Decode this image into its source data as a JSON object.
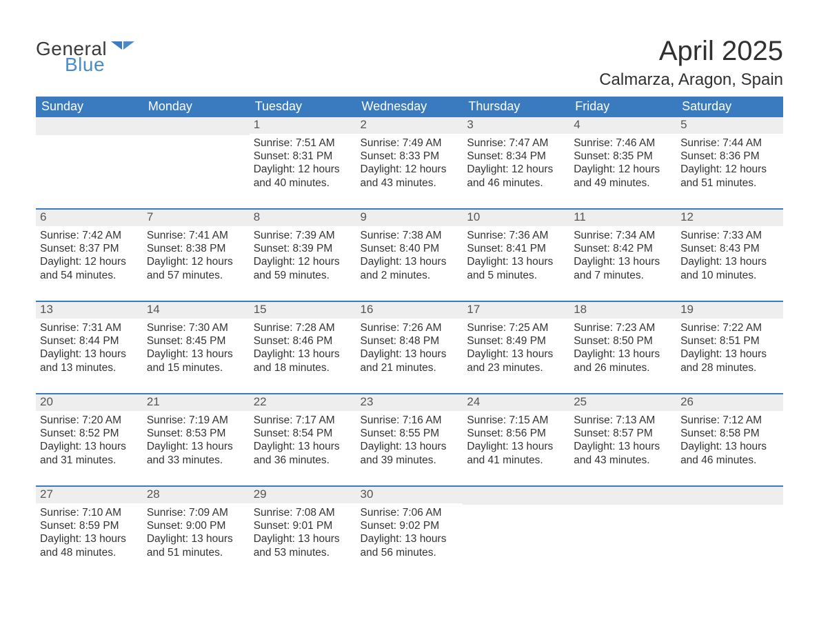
{
  "logo": {
    "word1": "General",
    "word2": "Blue",
    "word1_color": "#3a3a3a",
    "word2_color": "#4a8cc9",
    "icon_color": "#3a7bbf"
  },
  "title": {
    "month_year": "April 2025",
    "location": "Calmarza, Aragon, Spain"
  },
  "colors": {
    "header_bg": "#3a7bbf",
    "header_text": "#ffffff",
    "daynum_bg": "#eeeeee",
    "daynum_text": "#555555",
    "body_text": "#333333",
    "row_divider": "#3a7bbf",
    "page_bg": "#ffffff"
  },
  "weekdays": [
    "Sunday",
    "Monday",
    "Tuesday",
    "Wednesday",
    "Thursday",
    "Friday",
    "Saturday"
  ],
  "weeks": [
    [
      {
        "day": "",
        "sunrise": "",
        "sunset": "",
        "daylight": ""
      },
      {
        "day": "",
        "sunrise": "",
        "sunset": "",
        "daylight": ""
      },
      {
        "day": "1",
        "sunrise": "Sunrise: 7:51 AM",
        "sunset": "Sunset: 8:31 PM",
        "daylight": "Daylight: 12 hours and 40 minutes."
      },
      {
        "day": "2",
        "sunrise": "Sunrise: 7:49 AM",
        "sunset": "Sunset: 8:33 PM",
        "daylight": "Daylight: 12 hours and 43 minutes."
      },
      {
        "day": "3",
        "sunrise": "Sunrise: 7:47 AM",
        "sunset": "Sunset: 8:34 PM",
        "daylight": "Daylight: 12 hours and 46 minutes."
      },
      {
        "day": "4",
        "sunrise": "Sunrise: 7:46 AM",
        "sunset": "Sunset: 8:35 PM",
        "daylight": "Daylight: 12 hours and 49 minutes."
      },
      {
        "day": "5",
        "sunrise": "Sunrise: 7:44 AM",
        "sunset": "Sunset: 8:36 PM",
        "daylight": "Daylight: 12 hours and 51 minutes."
      }
    ],
    [
      {
        "day": "6",
        "sunrise": "Sunrise: 7:42 AM",
        "sunset": "Sunset: 8:37 PM",
        "daylight": "Daylight: 12 hours and 54 minutes."
      },
      {
        "day": "7",
        "sunrise": "Sunrise: 7:41 AM",
        "sunset": "Sunset: 8:38 PM",
        "daylight": "Daylight: 12 hours and 57 minutes."
      },
      {
        "day": "8",
        "sunrise": "Sunrise: 7:39 AM",
        "sunset": "Sunset: 8:39 PM",
        "daylight": "Daylight: 12 hours and 59 minutes."
      },
      {
        "day": "9",
        "sunrise": "Sunrise: 7:38 AM",
        "sunset": "Sunset: 8:40 PM",
        "daylight": "Daylight: 13 hours and 2 minutes."
      },
      {
        "day": "10",
        "sunrise": "Sunrise: 7:36 AM",
        "sunset": "Sunset: 8:41 PM",
        "daylight": "Daylight: 13 hours and 5 minutes."
      },
      {
        "day": "11",
        "sunrise": "Sunrise: 7:34 AM",
        "sunset": "Sunset: 8:42 PM",
        "daylight": "Daylight: 13 hours and 7 minutes."
      },
      {
        "day": "12",
        "sunrise": "Sunrise: 7:33 AM",
        "sunset": "Sunset: 8:43 PM",
        "daylight": "Daylight: 13 hours and 10 minutes."
      }
    ],
    [
      {
        "day": "13",
        "sunrise": "Sunrise: 7:31 AM",
        "sunset": "Sunset: 8:44 PM",
        "daylight": "Daylight: 13 hours and 13 minutes."
      },
      {
        "day": "14",
        "sunrise": "Sunrise: 7:30 AM",
        "sunset": "Sunset: 8:45 PM",
        "daylight": "Daylight: 13 hours and 15 minutes."
      },
      {
        "day": "15",
        "sunrise": "Sunrise: 7:28 AM",
        "sunset": "Sunset: 8:46 PM",
        "daylight": "Daylight: 13 hours and 18 minutes."
      },
      {
        "day": "16",
        "sunrise": "Sunrise: 7:26 AM",
        "sunset": "Sunset: 8:48 PM",
        "daylight": "Daylight: 13 hours and 21 minutes."
      },
      {
        "day": "17",
        "sunrise": "Sunrise: 7:25 AM",
        "sunset": "Sunset: 8:49 PM",
        "daylight": "Daylight: 13 hours and 23 minutes."
      },
      {
        "day": "18",
        "sunrise": "Sunrise: 7:23 AM",
        "sunset": "Sunset: 8:50 PM",
        "daylight": "Daylight: 13 hours and 26 minutes."
      },
      {
        "day": "19",
        "sunrise": "Sunrise: 7:22 AM",
        "sunset": "Sunset: 8:51 PM",
        "daylight": "Daylight: 13 hours and 28 minutes."
      }
    ],
    [
      {
        "day": "20",
        "sunrise": "Sunrise: 7:20 AM",
        "sunset": "Sunset: 8:52 PM",
        "daylight": "Daylight: 13 hours and 31 minutes."
      },
      {
        "day": "21",
        "sunrise": "Sunrise: 7:19 AM",
        "sunset": "Sunset: 8:53 PM",
        "daylight": "Daylight: 13 hours and 33 minutes."
      },
      {
        "day": "22",
        "sunrise": "Sunrise: 7:17 AM",
        "sunset": "Sunset: 8:54 PM",
        "daylight": "Daylight: 13 hours and 36 minutes."
      },
      {
        "day": "23",
        "sunrise": "Sunrise: 7:16 AM",
        "sunset": "Sunset: 8:55 PM",
        "daylight": "Daylight: 13 hours and 39 minutes."
      },
      {
        "day": "24",
        "sunrise": "Sunrise: 7:15 AM",
        "sunset": "Sunset: 8:56 PM",
        "daylight": "Daylight: 13 hours and 41 minutes."
      },
      {
        "day": "25",
        "sunrise": "Sunrise: 7:13 AM",
        "sunset": "Sunset: 8:57 PM",
        "daylight": "Daylight: 13 hours and 43 minutes."
      },
      {
        "day": "26",
        "sunrise": "Sunrise: 7:12 AM",
        "sunset": "Sunset: 8:58 PM",
        "daylight": "Daylight: 13 hours and 46 minutes."
      }
    ],
    [
      {
        "day": "27",
        "sunrise": "Sunrise: 7:10 AM",
        "sunset": "Sunset: 8:59 PM",
        "daylight": "Daylight: 13 hours and 48 minutes."
      },
      {
        "day": "28",
        "sunrise": "Sunrise: 7:09 AM",
        "sunset": "Sunset: 9:00 PM",
        "daylight": "Daylight: 13 hours and 51 minutes."
      },
      {
        "day": "29",
        "sunrise": "Sunrise: 7:08 AM",
        "sunset": "Sunset: 9:01 PM",
        "daylight": "Daylight: 13 hours and 53 minutes."
      },
      {
        "day": "30",
        "sunrise": "Sunrise: 7:06 AM",
        "sunset": "Sunset: 9:02 PM",
        "daylight": "Daylight: 13 hours and 56 minutes."
      },
      {
        "day": "",
        "sunrise": "",
        "sunset": "",
        "daylight": ""
      },
      {
        "day": "",
        "sunrise": "",
        "sunset": "",
        "daylight": ""
      },
      {
        "day": "",
        "sunrise": "",
        "sunset": "",
        "daylight": ""
      }
    ]
  ]
}
